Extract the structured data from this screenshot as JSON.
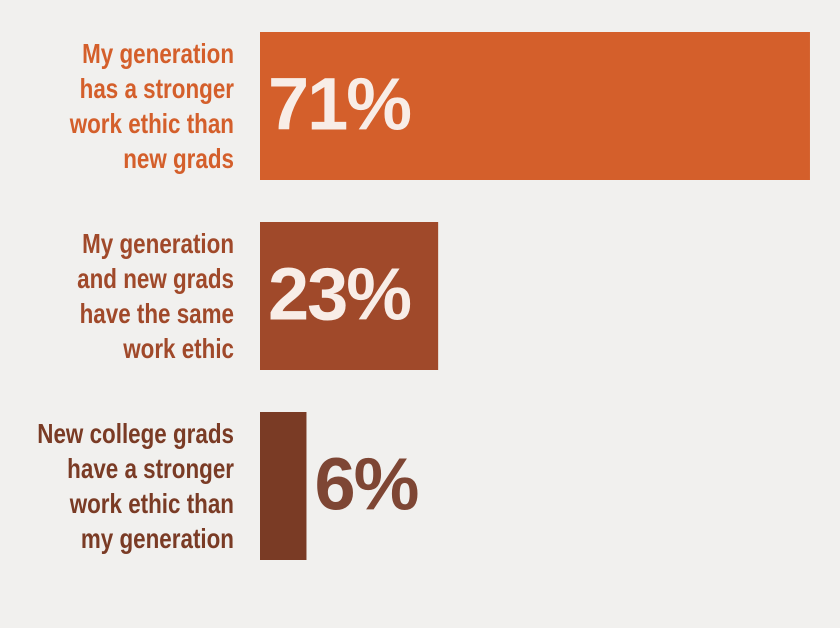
{
  "chart_data": {
    "type": "bar",
    "orientation": "horizontal",
    "categories": [
      "My generation\nhas a stronger\nwork ethic than\nnew grads",
      "My generation\nand new grads\nhave the same\nwork ethic",
      "New college grads\nhave a stronger\nwork ethic than\nmy generation"
    ],
    "values": [
      71,
      23,
      6
    ],
    "value_labels": [
      "71%",
      "23%",
      "6%"
    ],
    "colors": [
      "#d45f2b",
      "#a0492a",
      "#7a3b25"
    ]
  }
}
